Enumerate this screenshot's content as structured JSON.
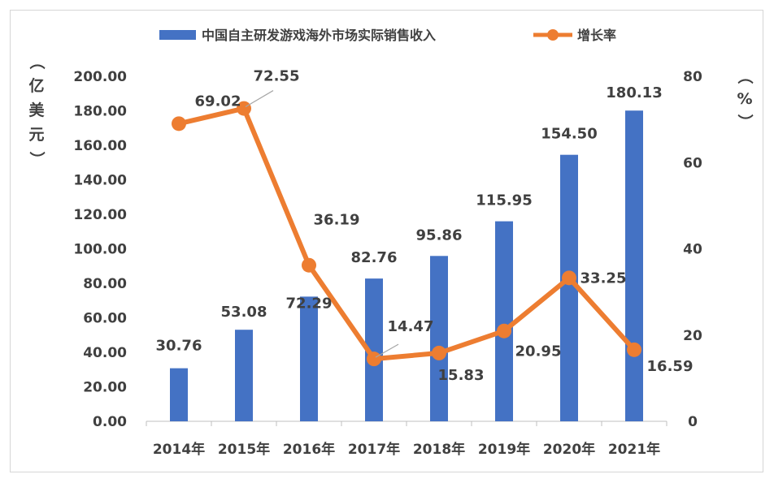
{
  "chart_data": {
    "type": "bar",
    "categories": [
      "2014年",
      "2015年",
      "2016年",
      "2017年",
      "2018年",
      "2019年",
      "2020年",
      "2021年"
    ],
    "series": [
      {
        "name": "中国自主研发游戏海外市场实际销售收入",
        "type": "bar",
        "axis": "left",
        "color": "#4472c4",
        "values": [
          30.76,
          53.08,
          72.29,
          82.76,
          95.86,
          115.95,
          154.5,
          180.13
        ],
        "labels": [
          "30.76",
          "53.08",
          "72.29",
          "82.76",
          "95.86",
          "115.95",
          "154.50",
          "180.13"
        ]
      },
      {
        "name": "增长率",
        "type": "line",
        "axis": "right",
        "color": "#ed7d31",
        "values": [
          69.02,
          72.55,
          36.19,
          14.47,
          15.83,
          20.95,
          33.25,
          16.59
        ],
        "labels": [
          "69.02",
          "72.55",
          "36.19",
          "14.47",
          "15.83",
          "20.95",
          "33.25",
          "16.59"
        ]
      }
    ],
    "ylabel_left": "（亿美元）",
    "ylabel_right": "（%）",
    "ylim_left": [
      0,
      200
    ],
    "yticks_left": [
      "0.00",
      "20.00",
      "40.00",
      "60.00",
      "80.00",
      "100.00",
      "120.00",
      "140.00",
      "160.00",
      "180.00",
      "200.00"
    ],
    "ylim_right": [
      0,
      80
    ],
    "yticks_right": [
      "0",
      "20",
      "40",
      "60",
      "80"
    ],
    "legend_position": "top",
    "grid": false
  }
}
